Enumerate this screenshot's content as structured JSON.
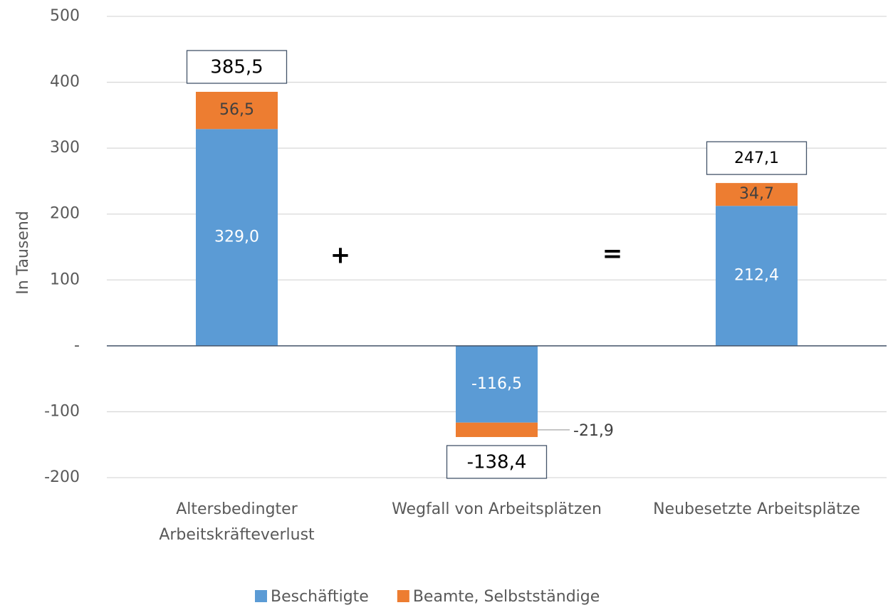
{
  "chart_data": {
    "type": "stacked_bar",
    "categories": [
      "Altersbedingter Arbeitskräfteverlust",
      "Wegfall von Arbeitsplätzen",
      "Neubesetzte Arbeitsplätze"
    ],
    "series": [
      {
        "name": "Beschäftigte",
        "color": "#5b9bd5",
        "values": [
          329.0,
          -116.5,
          212.4
        ],
        "value_labels": [
          "329,0",
          "-116,5",
          "212,4"
        ]
      },
      {
        "name": "Beamte, Selbstständige",
        "color": "#ed7d31",
        "values": [
          56.5,
          -21.9,
          34.7
        ],
        "value_labels": [
          "56,5",
          "-21,9",
          "34,7"
        ]
      }
    ],
    "totals": {
      "values": [
        385.5,
        -138.4,
        247.1
      ],
      "value_labels": [
        "385,5",
        "-138,4",
        "247,1"
      ]
    },
    "annotations": [
      "+",
      "="
    ],
    "y_axis_label": "In Tausend",
    "ylim": [
      -200,
      500
    ],
    "yticks": [
      -200,
      -100,
      {
        "value": 0,
        "label": "-"
      },
      100,
      200,
      300,
      400,
      500
    ],
    "grid": true,
    "legend": "bottom"
  }
}
